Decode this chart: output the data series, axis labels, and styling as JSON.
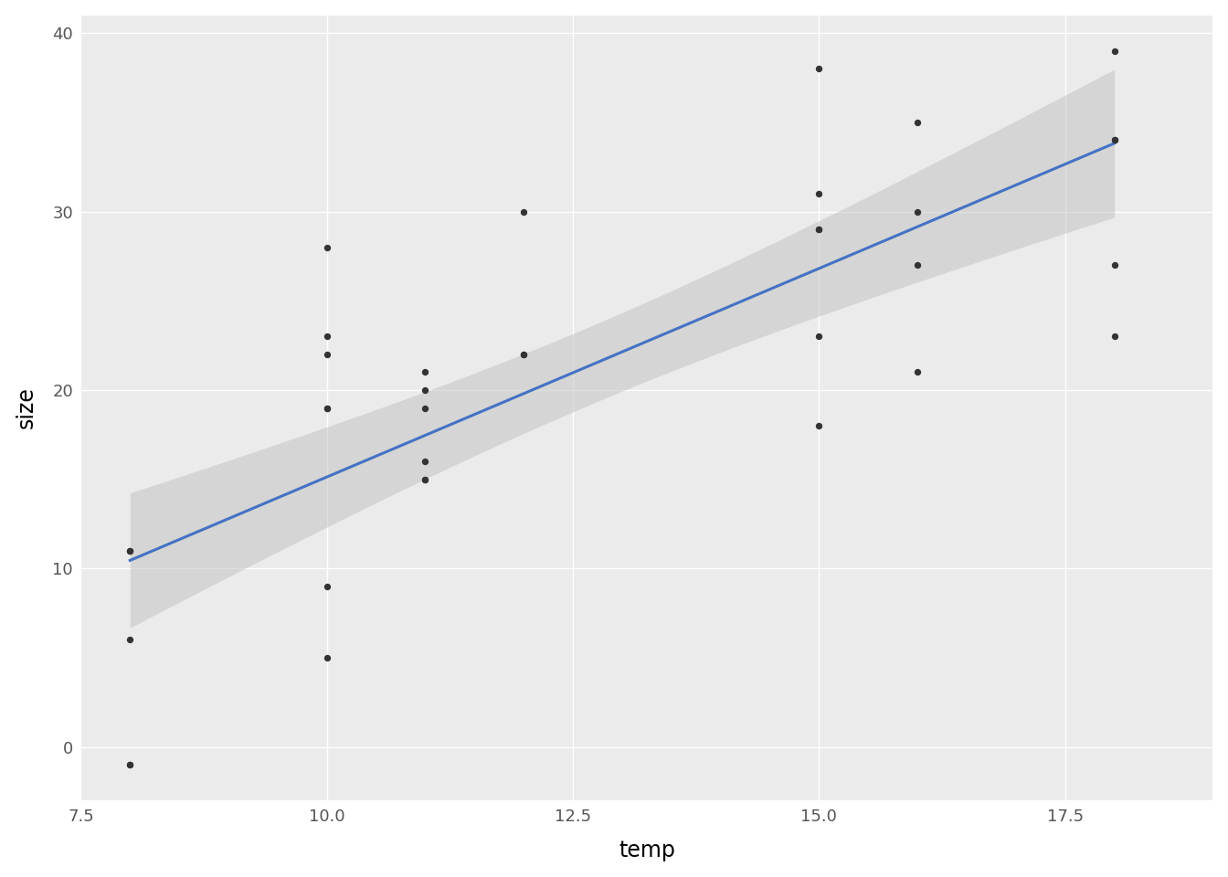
{
  "x": [
    8,
    8,
    8,
    8,
    8,
    10,
    10,
    10,
    10,
    10,
    10,
    10,
    11,
    11,
    11,
    11,
    11,
    11,
    12,
    12,
    12,
    15,
    15,
    15,
    15,
    15,
    15,
    16,
    16,
    16,
    16,
    18,
    18,
    18,
    18,
    18
  ],
  "y": [
    11,
    11,
    6,
    -1,
    -1,
    28,
    9,
    5,
    23,
    22,
    19,
    19,
    21,
    20,
    19,
    16,
    15,
    15,
    22,
    22,
    30,
    38,
    31,
    29,
    29,
    23,
    18,
    35,
    30,
    27,
    21,
    39,
    34,
    34,
    27,
    23
  ],
  "xlabel": "temp",
  "ylabel": "size",
  "xlim": [
    7.5,
    19.0
  ],
  "ylim": [
    -3,
    41
  ],
  "xticks": [
    7.5,
    10.0,
    12.5,
    15.0,
    17.5
  ],
  "ytick_labels": [
    "0",
    "10",
    "20",
    "30",
    "40"
  ],
  "yticks": [
    0,
    10,
    20,
    30,
    40
  ],
  "line_color": "#4472C4",
  "ci_color": "#C0C0C0",
  "ci_alpha": 0.5,
  "dot_color": "#333333",
  "dot_size": 28,
  "dot_alpha": 1.0,
  "background_color": "#FFFFFF",
  "panel_background": "#EBEBEB",
  "grid_color": "#FFFFFF",
  "grid_linewidth": 1.0,
  "label_fontsize": 17,
  "tick_fontsize": 13,
  "tick_color": "#555555"
}
